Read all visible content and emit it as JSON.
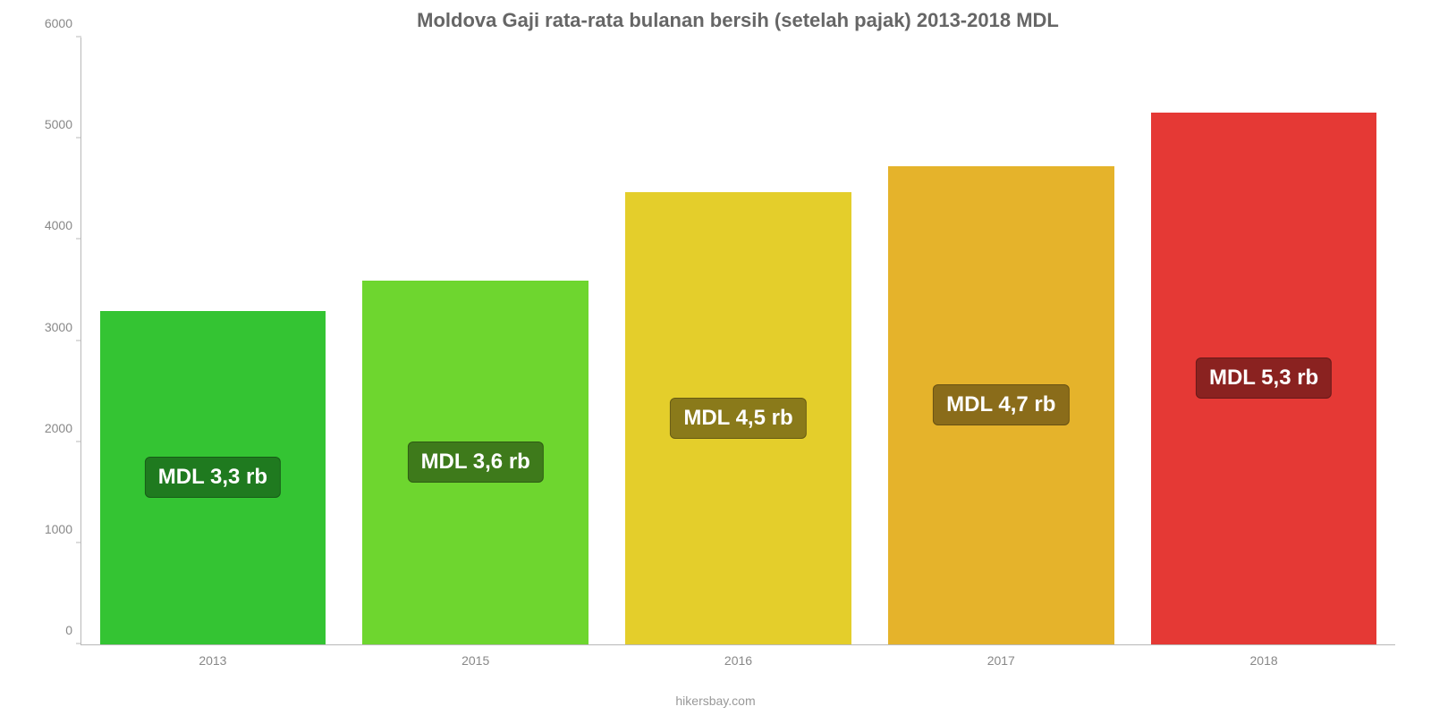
{
  "chart": {
    "type": "bar",
    "title": "Moldova Gaji rata-rata bulanan bersih (setelah pajak) 2013-2018 MDL",
    "title_color": "#666666",
    "title_fontsize": 22,
    "source": "hikersbay.com",
    "background_color": "#ffffff",
    "axis_color": "#b8b8b8",
    "tick_label_color": "#888888",
    "tick_fontsize": 14,
    "ylim": [
      0,
      6000
    ],
    "ytick_step": 1000,
    "yticks": [
      {
        "v": 0,
        "label": "0"
      },
      {
        "v": 1000,
        "label": "1000"
      },
      {
        "v": 2000,
        "label": "2000"
      },
      {
        "v": 3000,
        "label": "3000"
      },
      {
        "v": 4000,
        "label": "4000"
      },
      {
        "v": 5000,
        "label": "5000"
      },
      {
        "v": 6000,
        "label": "6000"
      }
    ],
    "bar_width_ratio": 0.86,
    "bar_label_fontsize": 24,
    "bar_label_text_color": "#ffffff",
    "bars": [
      {
        "category": "2013",
        "value": 3300,
        "color": "#34c433",
        "label": "MDL 3,3 rb",
        "label_bg": "#1f7a1f"
      },
      {
        "category": "2015",
        "value": 3600,
        "color": "#6ed62f",
        "label": "MDL 3,6 rb",
        "label_bg": "#3e7a1b"
      },
      {
        "category": "2016",
        "value": 4470,
        "color": "#e4ce2b",
        "label": "MDL 4,5 rb",
        "label_bg": "#8a7a1a"
      },
      {
        "category": "2017",
        "value": 4730,
        "color": "#e5b32b",
        "label": "MDL 4,7 rb",
        "label_bg": "#8a6c1a"
      },
      {
        "category": "2018",
        "value": 5260,
        "color": "#e53935",
        "label": "MDL 5,3 rb",
        "label_bg": "#8a2220"
      }
    ]
  }
}
